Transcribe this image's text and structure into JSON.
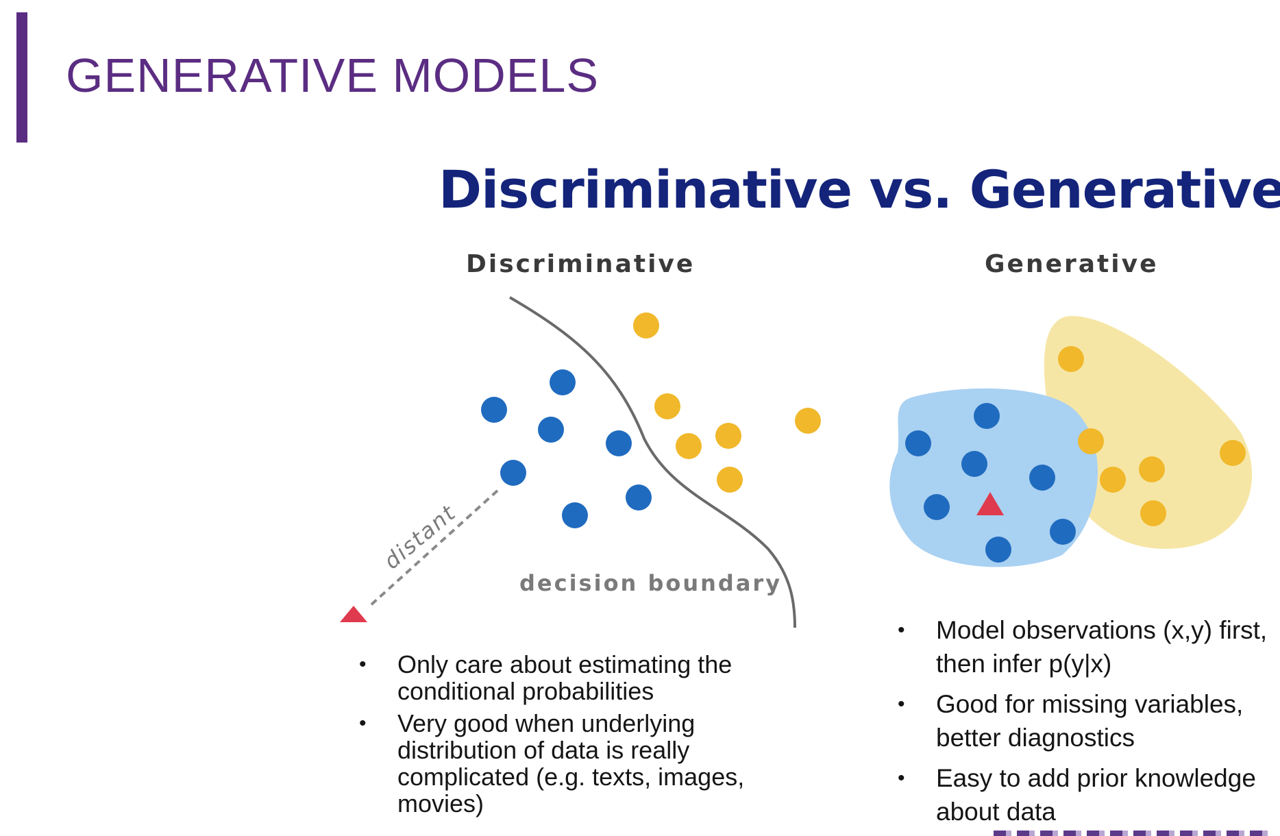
{
  "header": {
    "title": "GENERATIVE MODELS"
  },
  "main": {
    "heading": "Discriminative vs. Generative"
  },
  "discriminative": {
    "heading": "Discriminative",
    "distant_label": "distant",
    "boundary_label": "decision boundary",
    "bullets": [
      "Only care about estimating the conditional probabilities",
      "Very good when underlying distribution of data is really complicated (e.g. texts, images, movies)"
    ]
  },
  "generative": {
    "heading": "Generative",
    "bullets": [
      "Model observations (x,y) first, then infer p(y|x)",
      "Good for missing variables, better diagnostics",
      "Easy to add prior knowledge about data"
    ]
  },
  "colors": {
    "accent": "#5b2d82",
    "heading": "#14247a",
    "blue_point": "#1f6bbf",
    "yellow_point": "#f0b82a",
    "red_triangle": "#e03a4e",
    "blue_region": "#a9d1f2",
    "yellow_region": "#f6e6a6"
  }
}
